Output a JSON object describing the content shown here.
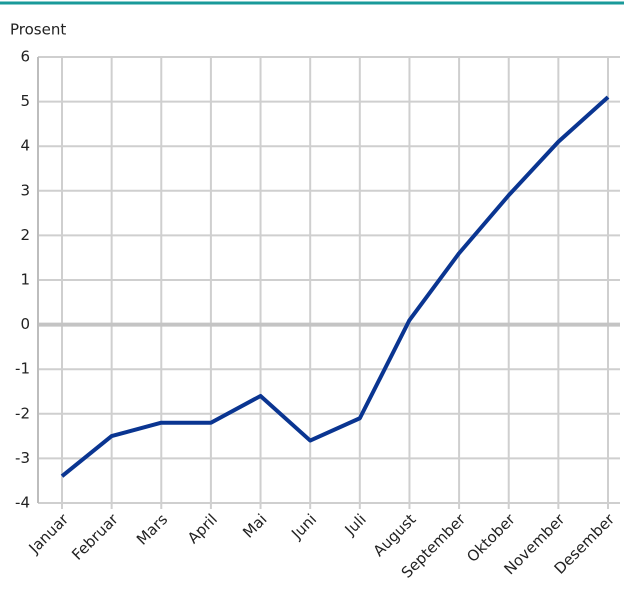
{
  "chart_data": {
    "type": "line",
    "y_label": "Prosent",
    "categories": [
      "Januar",
      "Februar",
      "Mars",
      "April",
      "Mai",
      "Juni",
      "Juli",
      "August",
      "September",
      "Oktober",
      "November",
      "Desember"
    ],
    "series": [
      {
        "color": "#0a3591",
        "values": [
          -3.4,
          -2.5,
          -2.2,
          -2.2,
          -1.6,
          -2.6,
          -2.1,
          0.1,
          1.6,
          2.9,
          4.1,
          5.1
        ]
      }
    ],
    "ylim": [
      -4,
      6
    ],
    "yticks": [
      -4,
      -3,
      -2,
      -1,
      0,
      1,
      2,
      3,
      4,
      5,
      6
    ],
    "grid": true
  }
}
